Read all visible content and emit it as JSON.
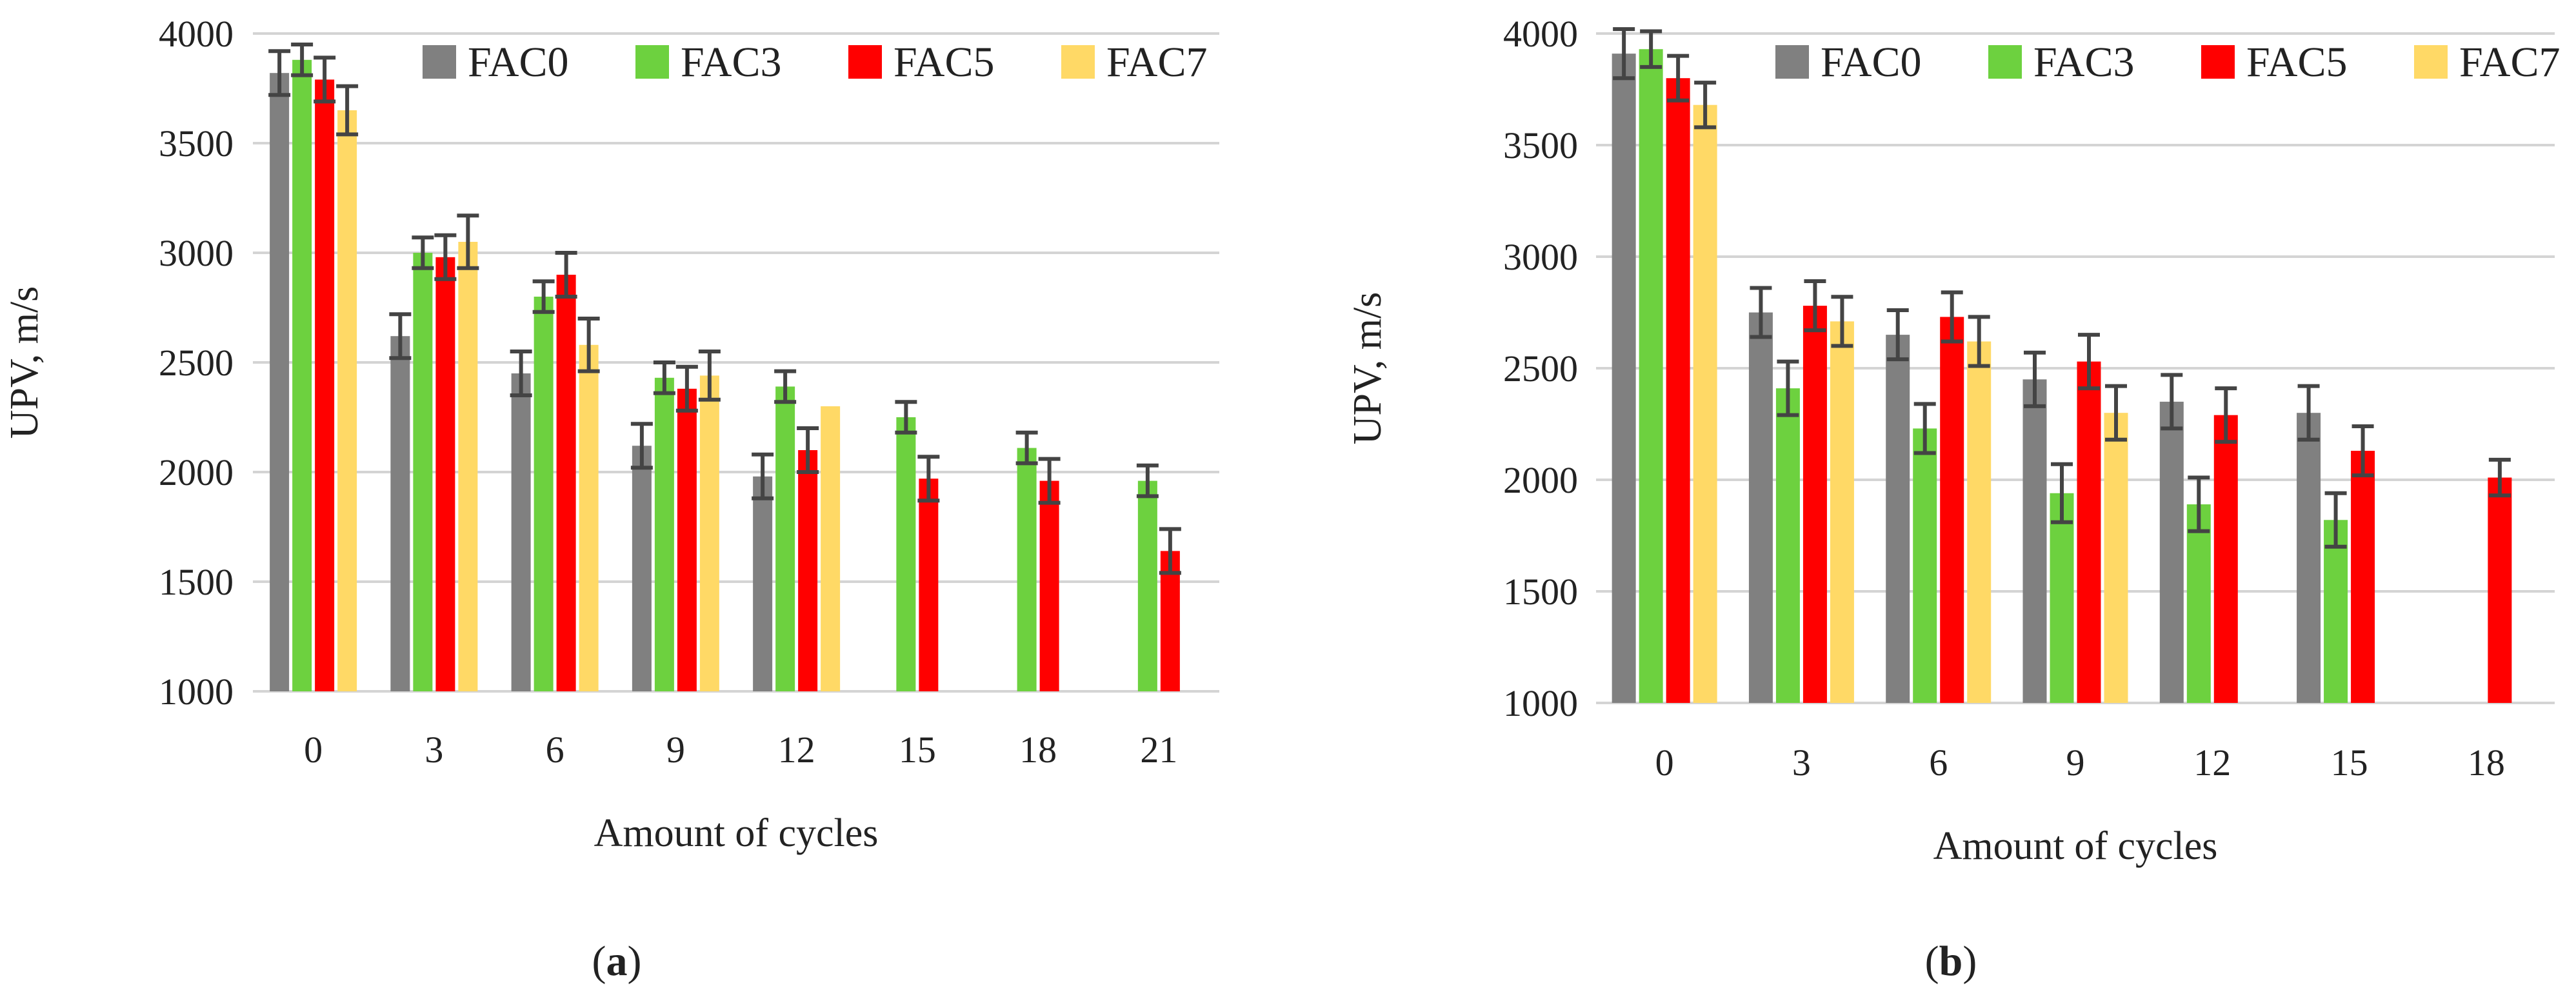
{
  "chart_data": [
    {
      "type": "bar",
      "panel": "a",
      "caption_letter": "a",
      "caption_open": "(",
      "caption_close": ")",
      "title": "",
      "xlabel": "Amount of cycles",
      "ylabel": "UPV, m/s",
      "ylim": [
        1000,
        4000
      ],
      "yticks": [
        1000,
        1500,
        2000,
        2500,
        3000,
        3500,
        4000
      ],
      "grid": true,
      "legend_position": "top-right",
      "categories": [
        "0",
        "3",
        "6",
        "9",
        "12",
        "15",
        "18",
        "21"
      ],
      "series": [
        {
          "name": "FAC0",
          "color": "#808080",
          "values": [
            3820,
            2620,
            2450,
            2120,
            1980,
            null,
            null,
            null
          ],
          "errors": [
            100,
            100,
            100,
            100,
            100,
            null,
            null,
            null
          ]
        },
        {
          "name": "FAC3",
          "color": "#6dd13f",
          "values": [
            3880,
            3000,
            2800,
            2430,
            2390,
            2250,
            2110,
            1960
          ],
          "errors": [
            70,
            70,
            70,
            70,
            70,
            70,
            70,
            70
          ]
        },
        {
          "name": "FAC5",
          "color": "#ff0000",
          "values": [
            3790,
            2980,
            2900,
            2380,
            2100,
            1970,
            1960,
            1640
          ],
          "errors": [
            100,
            100,
            100,
            100,
            100,
            100,
            100,
            100
          ]
        },
        {
          "name": "FAC7",
          "color": "#ffd966",
          "values": [
            3650,
            3050,
            2580,
            2440,
            2300,
            null,
            null,
            null
          ],
          "errors": [
            110,
            120,
            120,
            110,
            null,
            null,
            null,
            null
          ]
        }
      ]
    },
    {
      "type": "bar",
      "panel": "b",
      "caption_letter": "b",
      "caption_open": "(",
      "caption_close": ")",
      "title": "",
      "xlabel": "Amount of cycles",
      "ylabel": "UPV, m/s",
      "ylim": [
        1000,
        4000
      ],
      "yticks": [
        1000,
        1500,
        2000,
        2500,
        3000,
        3500,
        4000
      ],
      "grid": true,
      "legend_position": "top-right",
      "categories": [
        "0",
        "3",
        "6",
        "9",
        "12",
        "15",
        "18"
      ],
      "series": [
        {
          "name": "FAC0",
          "color": "#808080",
          "values": [
            3910,
            2750,
            2650,
            2450,
            2350,
            2300,
            null
          ],
          "errors": [
            110,
            110,
            110,
            120,
            120,
            120,
            null
          ]
        },
        {
          "name": "FAC3",
          "color": "#6dd13f",
          "values": [
            3930,
            2410,
            2230,
            1940,
            1890,
            1820,
            null
          ],
          "errors": [
            80,
            120,
            110,
            130,
            120,
            120,
            null
          ]
        },
        {
          "name": "FAC5",
          "color": "#ff0000",
          "values": [
            3800,
            2780,
            2730,
            2530,
            2290,
            2130,
            2010
          ],
          "errors": [
            100,
            110,
            110,
            120,
            120,
            110,
            80
          ]
        },
        {
          "name": "FAC7",
          "color": "#ffd966",
          "values": [
            3680,
            2710,
            2620,
            2300,
            null,
            null,
            null
          ],
          "errors": [
            100,
            110,
            110,
            120,
            null,
            null,
            null
          ]
        }
      ]
    }
  ]
}
